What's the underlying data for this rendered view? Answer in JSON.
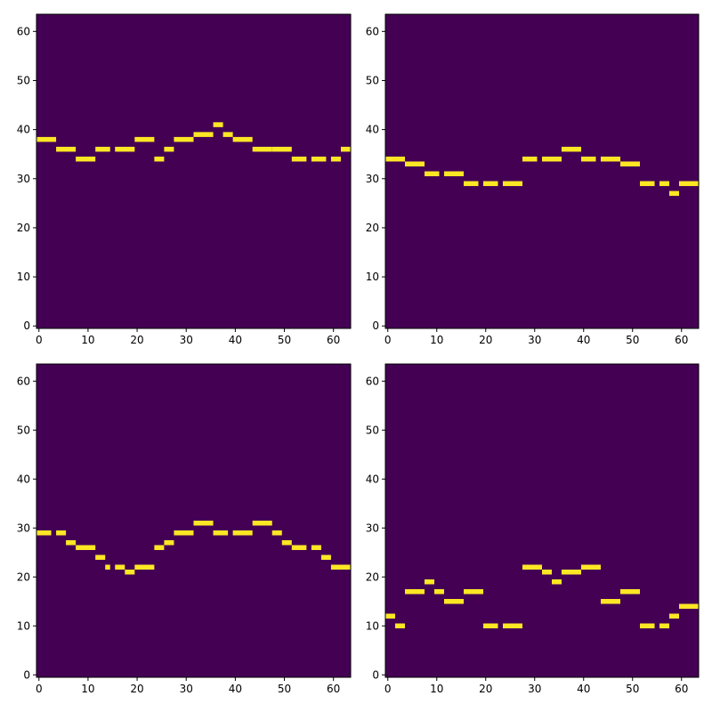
{
  "chart_data": [
    {
      "type": "heatmap",
      "xlim": [
        0,
        64
      ],
      "ylim": [
        0,
        64
      ],
      "x_ticks": [
        0,
        10,
        20,
        30,
        40,
        50,
        60
      ],
      "y_ticks": [
        0,
        10,
        20,
        30,
        40,
        50,
        60
      ],
      "background_color": "#440154",
      "note_color": "#fde725",
      "notes": [
        {
          "start": 0,
          "end": 4,
          "pitch": 38
        },
        {
          "start": 4,
          "end": 8,
          "pitch": 36
        },
        {
          "start": 8,
          "end": 12,
          "pitch": 34
        },
        {
          "start": 12,
          "end": 15,
          "pitch": 36
        },
        {
          "start": 16,
          "end": 20,
          "pitch": 36
        },
        {
          "start": 20,
          "end": 24,
          "pitch": 38
        },
        {
          "start": 24,
          "end": 26,
          "pitch": 34
        },
        {
          "start": 26,
          "end": 28,
          "pitch": 36
        },
        {
          "start": 28,
          "end": 32,
          "pitch": 38
        },
        {
          "start": 32,
          "end": 36,
          "pitch": 39
        },
        {
          "start": 36,
          "end": 38,
          "pitch": 41
        },
        {
          "start": 38,
          "end": 40,
          "pitch": 39
        },
        {
          "start": 40,
          "end": 44,
          "pitch": 38
        },
        {
          "start": 44,
          "end": 48,
          "pitch": 36
        },
        {
          "start": 48,
          "end": 52,
          "pitch": 36
        },
        {
          "start": 52,
          "end": 55,
          "pitch": 34
        },
        {
          "start": 56,
          "end": 59,
          "pitch": 34
        },
        {
          "start": 60,
          "end": 62,
          "pitch": 34
        },
        {
          "start": 62,
          "end": 64,
          "pitch": 36
        }
      ]
    },
    {
      "type": "heatmap",
      "xlim": [
        0,
        64
      ],
      "ylim": [
        0,
        64
      ],
      "x_ticks": [
        0,
        10,
        20,
        30,
        40,
        50,
        60
      ],
      "y_ticks": [
        0,
        10,
        20,
        30,
        40,
        50,
        60
      ],
      "background_color": "#440154",
      "note_color": "#fde725",
      "notes": [
        {
          "start": 0,
          "end": 4,
          "pitch": 34
        },
        {
          "start": 4,
          "end": 8,
          "pitch": 33
        },
        {
          "start": 8,
          "end": 11,
          "pitch": 31
        },
        {
          "start": 12,
          "end": 16,
          "pitch": 31
        },
        {
          "start": 16,
          "end": 19,
          "pitch": 29
        },
        {
          "start": 20,
          "end": 23,
          "pitch": 29
        },
        {
          "start": 24,
          "end": 28,
          "pitch": 29
        },
        {
          "start": 28,
          "end": 31,
          "pitch": 34
        },
        {
          "start": 32,
          "end": 36,
          "pitch": 34
        },
        {
          "start": 36,
          "end": 40,
          "pitch": 36
        },
        {
          "start": 40,
          "end": 43,
          "pitch": 34
        },
        {
          "start": 44,
          "end": 48,
          "pitch": 34
        },
        {
          "start": 48,
          "end": 52,
          "pitch": 33
        },
        {
          "start": 52,
          "end": 55,
          "pitch": 29
        },
        {
          "start": 56,
          "end": 58,
          "pitch": 29
        },
        {
          "start": 58,
          "end": 60,
          "pitch": 27
        },
        {
          "start": 60,
          "end": 64,
          "pitch": 29
        }
      ]
    },
    {
      "type": "heatmap",
      "xlim": [
        0,
        64
      ],
      "ylim": [
        0,
        64
      ],
      "x_ticks": [
        0,
        10,
        20,
        30,
        40,
        50,
        60
      ],
      "y_ticks": [
        0,
        10,
        20,
        30,
        40,
        50,
        60
      ],
      "background_color": "#440154",
      "note_color": "#fde725",
      "notes": [
        {
          "start": 0,
          "end": 3,
          "pitch": 29
        },
        {
          "start": 4,
          "end": 6,
          "pitch": 29
        },
        {
          "start": 6,
          "end": 8,
          "pitch": 27
        },
        {
          "start": 8,
          "end": 12,
          "pitch": 26
        },
        {
          "start": 12,
          "end": 14,
          "pitch": 24
        },
        {
          "start": 14,
          "end": 15,
          "pitch": 22
        },
        {
          "start": 16,
          "end": 18,
          "pitch": 22
        },
        {
          "start": 18,
          "end": 20,
          "pitch": 21
        },
        {
          "start": 20,
          "end": 24,
          "pitch": 22
        },
        {
          "start": 24,
          "end": 26,
          "pitch": 26
        },
        {
          "start": 26,
          "end": 28,
          "pitch": 27
        },
        {
          "start": 28,
          "end": 32,
          "pitch": 29
        },
        {
          "start": 32,
          "end": 36,
          "pitch": 31
        },
        {
          "start": 36,
          "end": 39,
          "pitch": 29
        },
        {
          "start": 40,
          "end": 44,
          "pitch": 29
        },
        {
          "start": 44,
          "end": 48,
          "pitch": 31
        },
        {
          "start": 48,
          "end": 50,
          "pitch": 29
        },
        {
          "start": 50,
          "end": 52,
          "pitch": 27
        },
        {
          "start": 52,
          "end": 55,
          "pitch": 26
        },
        {
          "start": 56,
          "end": 58,
          "pitch": 26
        },
        {
          "start": 58,
          "end": 60,
          "pitch": 24
        },
        {
          "start": 60,
          "end": 64,
          "pitch": 22
        }
      ]
    },
    {
      "type": "heatmap",
      "xlim": [
        0,
        64
      ],
      "ylim": [
        0,
        64
      ],
      "x_ticks": [
        0,
        10,
        20,
        30,
        40,
        50,
        60
      ],
      "y_ticks": [
        0,
        10,
        20,
        30,
        40,
        50,
        60
      ],
      "background_color": "#440154",
      "note_color": "#fde725",
      "notes": [
        {
          "start": 0,
          "end": 2,
          "pitch": 12
        },
        {
          "start": 2,
          "end": 4,
          "pitch": 10
        },
        {
          "start": 4,
          "end": 8,
          "pitch": 17
        },
        {
          "start": 8,
          "end": 10,
          "pitch": 19
        },
        {
          "start": 10,
          "end": 12,
          "pitch": 17
        },
        {
          "start": 12,
          "end": 16,
          "pitch": 15
        },
        {
          "start": 16,
          "end": 20,
          "pitch": 17
        },
        {
          "start": 20,
          "end": 23,
          "pitch": 10
        },
        {
          "start": 24,
          "end": 28,
          "pitch": 10
        },
        {
          "start": 28,
          "end": 32,
          "pitch": 22
        },
        {
          "start": 32,
          "end": 34,
          "pitch": 21
        },
        {
          "start": 34,
          "end": 36,
          "pitch": 19
        },
        {
          "start": 36,
          "end": 40,
          "pitch": 21
        },
        {
          "start": 40,
          "end": 44,
          "pitch": 22
        },
        {
          "start": 44,
          "end": 48,
          "pitch": 15
        },
        {
          "start": 48,
          "end": 52,
          "pitch": 17
        },
        {
          "start": 52,
          "end": 55,
          "pitch": 10
        },
        {
          "start": 56,
          "end": 58,
          "pitch": 10
        },
        {
          "start": 58,
          "end": 60,
          "pitch": 12
        },
        {
          "start": 60,
          "end": 64,
          "pitch": 14
        }
      ]
    }
  ]
}
